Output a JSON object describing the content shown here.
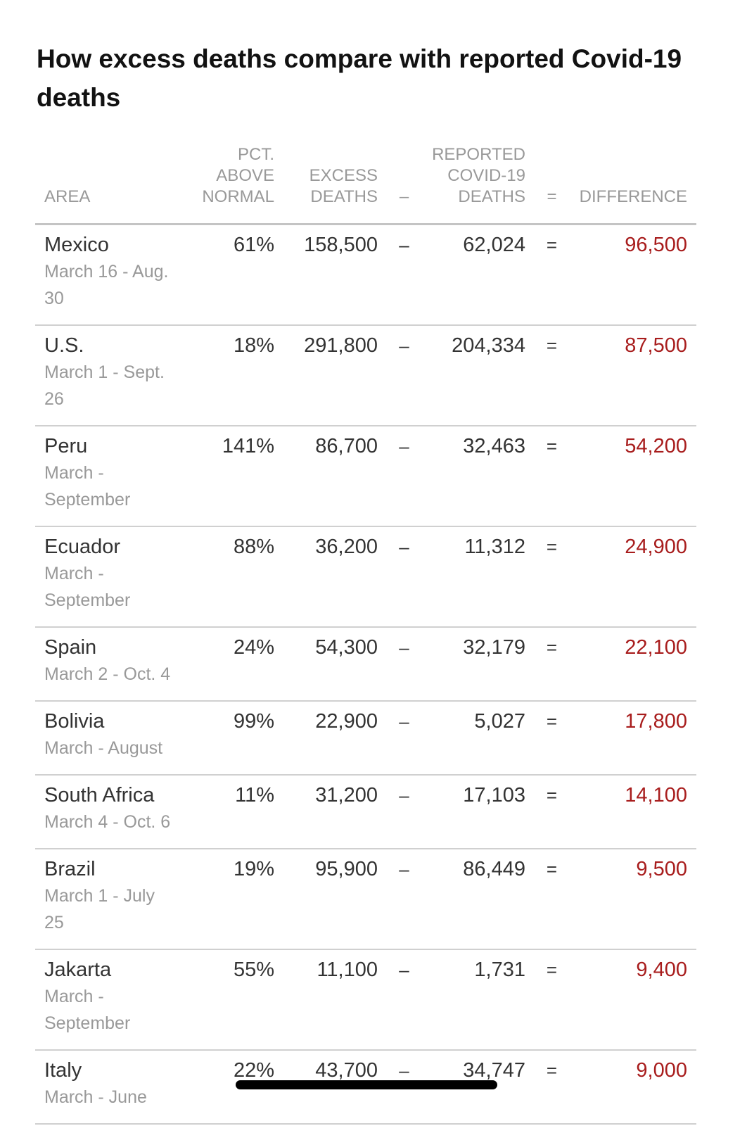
{
  "title": "How excess deaths compare with reported Covid-19 deaths",
  "headers": {
    "area": "Area",
    "pct": "Pct. above normal",
    "excess": "Excess deaths",
    "minus": "–",
    "reported": "Reported Covid-19 deaths",
    "equals": "=",
    "difference": "Difference"
  },
  "colors": {
    "difference": "#a81d1d",
    "muted": "#999999",
    "text": "#333333"
  },
  "rows": [
    {
      "area": "Mexico",
      "dates": "March 16 - Aug. 30",
      "pct": "61%",
      "excess": "158,500",
      "reported": "62,024",
      "difference": "96,500"
    },
    {
      "area": "U.S.",
      "dates": "March 1 - Sept. 26",
      "pct": "18%",
      "excess": "291,800",
      "reported": "204,334",
      "difference": "87,500"
    },
    {
      "area": "Peru",
      "dates": "March - September",
      "pct": "141%",
      "excess": "86,700",
      "reported": "32,463",
      "difference": "54,200"
    },
    {
      "area": "Ecuador",
      "dates": "March - September",
      "pct": "88%",
      "excess": "36,200",
      "reported": "11,312",
      "difference": "24,900"
    },
    {
      "area": "Spain",
      "dates": "March 2 - Oct. 4",
      "pct": "24%",
      "excess": "54,300",
      "reported": "32,179",
      "difference": "22,100"
    },
    {
      "area": "Bolivia",
      "dates": "March - August",
      "pct": "99%",
      "excess": "22,900",
      "reported": "5,027",
      "difference": "17,800"
    },
    {
      "area": "South Africa",
      "dates": "March 4 - Oct. 6",
      "pct": "11%",
      "excess": "31,200",
      "reported": "17,103",
      "difference": "14,100"
    },
    {
      "area": "Brazil",
      "dates": "March 1 - July 25",
      "pct": "19%",
      "excess": "95,900",
      "reported": "86,449",
      "difference": "9,500"
    },
    {
      "area": "Jakarta",
      "dates": "March - September",
      "pct": "55%",
      "excess": "11,100",
      "reported": "1,731",
      "difference": "9,400"
    },
    {
      "area": "Italy",
      "dates": "March - June",
      "pct": "22%",
      "excess": "43,700",
      "reported": "34,747",
      "difference": "9,000"
    }
  ]
}
